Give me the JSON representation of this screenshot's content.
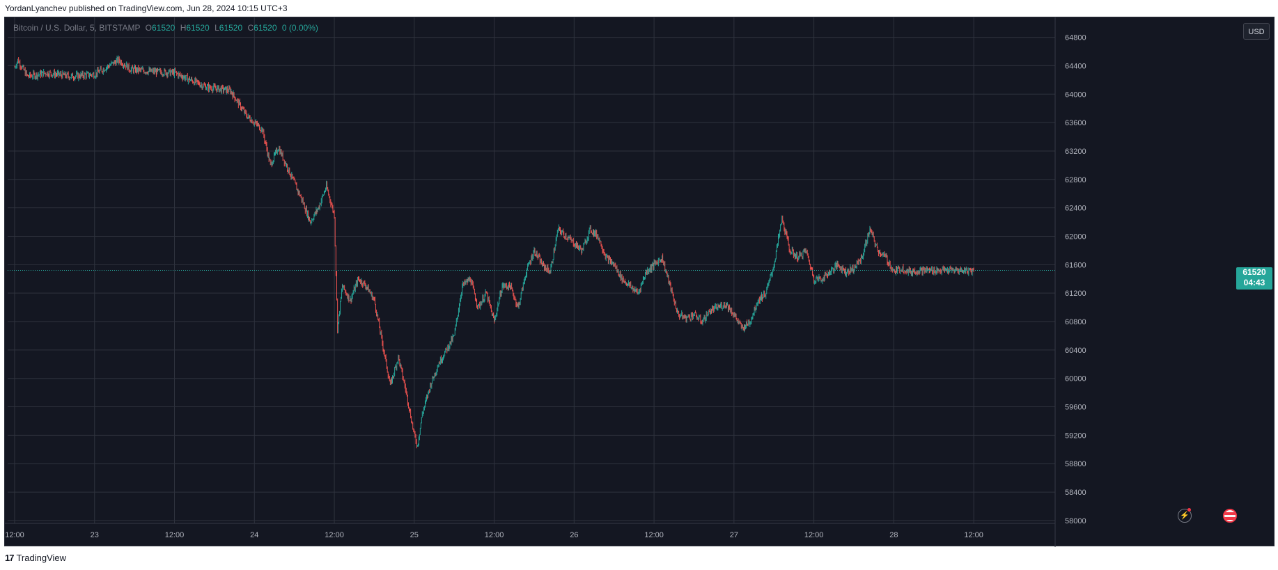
{
  "header": {
    "publisher": "YordanLyanchev published on TradingView.com, Jun 28, 2024 10:15 UTC+3"
  },
  "legend": {
    "symbol": "Bitcoin / U.S. Dollar, 5, BITSTAMP",
    "o_label": "O",
    "o_value": "61520",
    "h_label": "H",
    "h_value": "61520",
    "l_label": "L",
    "l_value": "61520",
    "c_label": "C",
    "c_value": "61520",
    "change": "0 (0.00%)"
  },
  "currency_button": "USD",
  "last_price": {
    "price": "61520",
    "countdown": "04:43"
  },
  "footer": {
    "logo": "17",
    "brand": "TradingView"
  },
  "icons": [
    "lightning-icon",
    "us-flag-icon"
  ],
  "colors": {
    "up": "#26a69a",
    "down": "#ef5350",
    "background": "#141722",
    "grid": "#363a45"
  },
  "chart_data": {
    "type": "line",
    "style": "candlestick",
    "x_tick_labels": [
      "12:00",
      "23",
      "12:00",
      "24",
      "12:00",
      "25",
      "12:00",
      "26",
      "12:00",
      "27",
      "12:00",
      "28",
      "12:00"
    ],
    "y_ticks": [
      58000,
      58400,
      58800,
      59200,
      59600,
      60000,
      60400,
      60800,
      61200,
      61600,
      62000,
      62400,
      62800,
      63200,
      63600,
      64000,
      64400,
      64800
    ],
    "ylim": [
      57960,
      65080
    ],
    "x_domain_days": [
      0,
      6.3
    ],
    "grid": true,
    "series": [
      {
        "x": [
          0.0,
          0.02,
          0.08,
          0.2,
          0.35,
          0.5,
          0.65,
          0.7,
          0.72,
          0.85,
          1.0,
          1.1,
          1.2,
          1.35,
          1.45,
          1.55,
          1.6,
          1.65,
          1.72,
          1.8,
          1.85,
          1.9,
          1.95,
          2.0,
          2.02,
          2.05,
          2.1,
          2.15,
          2.2,
          2.25,
          2.3,
          2.35,
          2.4,
          2.45,
          2.5,
          2.52,
          2.55,
          2.6,
          2.65,
          2.7,
          2.75,
          2.8,
          2.85,
          2.9,
          2.95,
          3.0,
          3.05,
          3.1,
          3.15,
          3.2,
          3.25,
          3.3,
          3.35,
          3.4,
          3.45,
          3.5,
          3.55,
          3.6,
          3.65,
          3.7,
          3.75,
          3.8,
          3.85,
          3.9,
          3.95,
          4.0,
          4.05,
          4.1,
          4.15,
          4.2,
          4.25,
          4.3,
          4.35,
          4.4,
          4.45,
          4.5,
          4.55,
          4.6,
          4.65,
          4.7,
          4.75,
          4.8,
          4.85,
          4.9,
          4.95,
          5.0,
          5.05,
          5.1,
          5.15,
          5.2,
          5.25,
          5.3,
          5.35,
          5.4,
          5.45,
          5.5,
          5.55,
          5.6,
          5.65,
          5.7,
          5.75,
          5.8,
          5.85,
          5.9,
          5.95,
          6.0
        ],
        "values": [
          64380,
          64480,
          64250,
          64300,
          64250,
          64280,
          64480,
          64400,
          64350,
          64320,
          64300,
          64200,
          64100,
          64050,
          63700,
          63500,
          63000,
          63250,
          62900,
          62500,
          62200,
          62400,
          62700,
          62300,
          60700,
          61300,
          61100,
          61400,
          61300,
          61100,
          60500,
          59900,
          60300,
          59800,
          59200,
          59050,
          59500,
          59900,
          60200,
          60400,
          60600,
          61300,
          61400,
          61000,
          61200,
          60800,
          61300,
          61300,
          61000,
          61500,
          61800,
          61600,
          61500,
          62100,
          62000,
          61900,
          61800,
          62100,
          62000,
          61700,
          61600,
          61400,
          61300,
          61200,
          61500,
          61600,
          61700,
          61300,
          60900,
          60850,
          60900,
          60800,
          60950,
          61000,
          61050,
          60900,
          60700,
          60800,
          61100,
          61200,
          61600,
          62250,
          61800,
          61700,
          61800,
          61400,
          61400,
          61500,
          61600,
          61500,
          61550,
          61700,
          62100,
          61800,
          61700,
          61500,
          61550,
          61500,
          61520,
          61520,
          61520,
          61520,
          61520,
          61520,
          61520,
          61520
        ]
      }
    ]
  }
}
